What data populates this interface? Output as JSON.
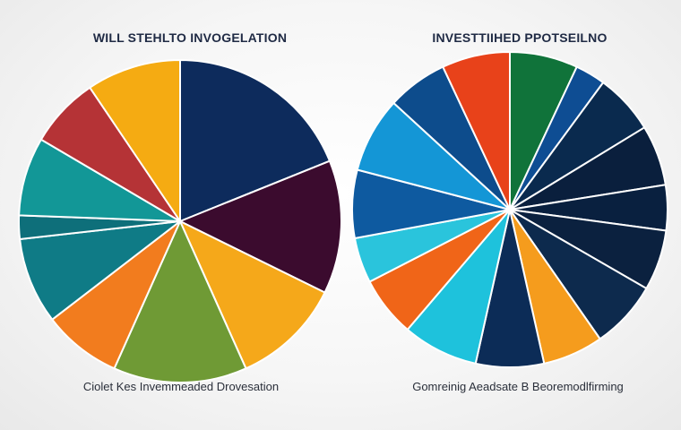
{
  "chart_data": [
    {
      "type": "pie",
      "title": "WILL STEHLTO INVOGELATION",
      "caption": "Ciolet Kes Invemmeaded Drovesation",
      "slices": [
        {
          "value": 24,
          "color": "#0d2b5c"
        },
        {
          "value": 17,
          "color": "#3b0b2e"
        },
        {
          "value": 14,
          "color": "#f5a81a"
        },
        {
          "value": 17,
          "color": "#6f9a35"
        },
        {
          "value": 10,
          "color": "#f27c1e"
        },
        {
          "value": 11,
          "color": "#0f7b86"
        },
        {
          "value": 3,
          "color": "#0e6f7a"
        },
        {
          "value": 10,
          "color": "#129797"
        },
        {
          "value": 9,
          "color": "#b53336"
        },
        {
          "value": 12,
          "color": "#f5ab12"
        }
      ]
    },
    {
      "type": "pie",
      "title": "INVESTTIIHED PPOTSEILNO",
      "caption": "Gomreinig Aeadsate B Beoremodlfirming",
      "slices": [
        {
          "value": 9,
          "color": "#10733a"
        },
        {
          "value": 4,
          "color": "#0e4d93"
        },
        {
          "value": 8,
          "color": "#0a2a4e"
        },
        {
          "value": 8,
          "color": "#0a1f3d"
        },
        {
          "value": 6,
          "color": "#09203f"
        },
        {
          "value": 8,
          "color": "#0b213f"
        },
        {
          "value": 9,
          "color": "#0d2a4d"
        },
        {
          "value": 8,
          "color": "#f59c1d"
        },
        {
          "value": 9,
          "color": "#0c2c57"
        },
        {
          "value": 10,
          "color": "#1ec2dc"
        },
        {
          "value": 8,
          "color": "#f06518"
        },
        {
          "value": 6,
          "color": "#2ac4dc"
        },
        {
          "value": 9,
          "color": "#0e5aa0"
        },
        {
          "value": 10,
          "color": "#1496d6"
        },
        {
          "value": 8,
          "color": "#0d4c8c"
        },
        {
          "value": 9,
          "color": "#e8421a"
        }
      ]
    }
  ]
}
